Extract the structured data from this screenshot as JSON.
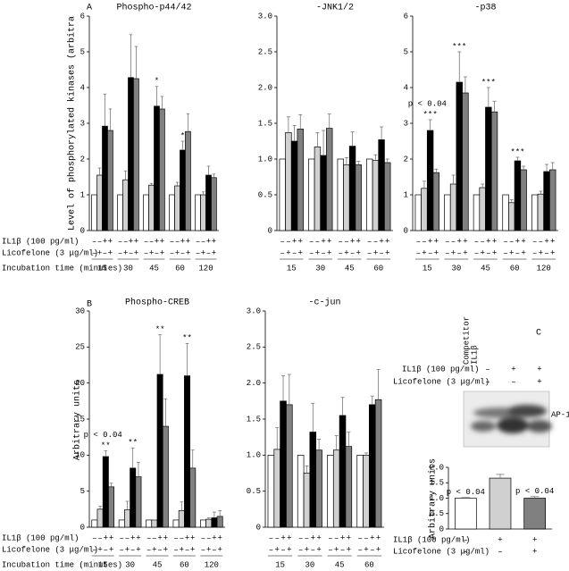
{
  "chart_data": [
    {
      "type": "bar",
      "panel": "A",
      "title": "Phospho-p44/42",
      "ylabel": "Level of phosphorylated kinases (arbitra",
      "il1b_label": "IL1β (100 pg/ml)",
      "licofelone_label": "Licofelone (3 μg/ml)",
      "xlabel": "Incubation time (minutes)",
      "categories": [
        "15",
        "30",
        "45",
        "60",
        "120"
      ],
      "il1b_signs": [
        "–",
        "–",
        "+",
        "+"
      ],
      "licofelone_signs": [
        "–",
        "+",
        "–",
        "+"
      ],
      "series": [
        {
          "color": "#ffffff",
          "values": [
            1,
            1,
            1,
            1,
            1
          ]
        },
        {
          "color": "#d0d0d0",
          "values": [
            1.55,
            1.42,
            1.27,
            1.25,
            1
          ],
          "errors": [
            0.2,
            0.25,
            0.05,
            0.1,
            0.08
          ]
        },
        {
          "color": "#000000",
          "values": [
            2.92,
            4.28,
            3.48,
            2.25,
            1.55
          ],
          "errors": [
            0.9,
            1.2,
            0.55,
            0.25,
            0.25
          ],
          "stars": [
            null,
            null,
            "*",
            "*",
            null
          ]
        },
        {
          "color": "#808080",
          "values": [
            2.8,
            4.25,
            3.4,
            2.77,
            1.48
          ],
          "errors": [
            0.6,
            0.9,
            0.35,
            0.5,
            0.1
          ]
        }
      ],
      "ylim": [
        0,
        6
      ],
      "yticks": [
        0,
        1,
        2,
        3,
        4,
        5,
        6
      ]
    },
    {
      "type": "bar",
      "title": "-JNK1/2",
      "categories": [
        "15",
        "30",
        "45",
        "60"
      ],
      "il1b_signs": [
        "–",
        "–",
        "+",
        "+"
      ],
      "licofelone_signs": [
        "–",
        "+",
        "–",
        "+"
      ],
      "series": [
        {
          "color": "#ffffff",
          "values": [
            1,
            1,
            1,
            1
          ]
        },
        {
          "color": "#d0d0d0",
          "values": [
            1.37,
            1.17,
            0.92,
            0.98
          ],
          "errors": [
            0.22,
            0.2,
            0.1,
            0.08
          ]
        },
        {
          "color": "#000000",
          "values": [
            1.25,
            1.05,
            1.18,
            1.27
          ],
          "errors": [
            0.22,
            0.35,
            0.2,
            0.18
          ]
        },
        {
          "color": "#808080",
          "values": [
            1.42,
            1.43,
            0.92,
            0.95
          ],
          "errors": [
            0.2,
            0.2,
            0.05,
            0.05
          ]
        }
      ],
      "ylim": [
        0,
        3
      ],
      "yticks": [
        0,
        0.5,
        {
          "value": 1,
          "label": "1.0"
        },
        1.5,
        {
          "value": 2,
          "label": "2.0"
        },
        2.5,
        {
          "value": 3,
          "label": "3.0"
        }
      ]
    },
    {
      "type": "bar",
      "title": "-p38",
      "categories": [
        "15",
        "30",
        "45",
        "60",
        "120"
      ],
      "il1b_signs": [
        "–",
        "–",
        "+",
        "+"
      ],
      "licofelone_signs": [
        "–",
        "+",
        "–",
        "+"
      ],
      "p_label": [
        "p < 0.04",
        null,
        null,
        null,
        null
      ],
      "series": [
        {
          "color": "#ffffff",
          "values": [
            1,
            1,
            1,
            1,
            1
          ]
        },
        {
          "color": "#d0d0d0",
          "values": [
            1.18,
            1.3,
            1.2,
            0.78,
            1.02
          ],
          "errors": [
            0.2,
            0.25,
            0.1,
            0.08,
            0.08
          ]
        },
        {
          "color": "#000000",
          "values": [
            2.8,
            4.15,
            3.45,
            1.95,
            1.65
          ],
          "errors": [
            0.3,
            0.85,
            0.55,
            0.1,
            0.2
          ],
          "stars": [
            "***",
            "***",
            "***",
            "***",
            null
          ]
        },
        {
          "color": "#808080",
          "values": [
            1.62,
            3.85,
            3.32,
            1.7,
            1.7
          ],
          "errors": [
            0.1,
            0.45,
            0.3,
            0.1,
            0.2
          ]
        }
      ],
      "ylim": [
        0,
        6
      ],
      "yticks": [
        0,
        1,
        2,
        3,
        4,
        5,
        6
      ]
    },
    {
      "type": "bar",
      "panel": "B",
      "title": "Phospho-CREB",
      "ylabel": "Arbitrary units",
      "il1b_label": "IL1β (100 pg/ml)",
      "licofelone_label": "Licofelone (3 μg/ml)",
      "xlabel": "Incubation time (minutes)",
      "categories": [
        "15",
        "30",
        "45",
        "60",
        "120"
      ],
      "il1b_signs": [
        "–",
        "–",
        "+",
        "+"
      ],
      "licofelone_signs": [
        "–",
        "+",
        "–",
        "+"
      ],
      "p_label": [
        "p < 0.04",
        null,
        null,
        null,
        null
      ],
      "series": [
        {
          "color": "#ffffff",
          "values": [
            1,
            1,
            1,
            1,
            1
          ]
        },
        {
          "color": "#d0d0d0",
          "values": [
            2.5,
            2.4,
            1,
            2.3,
            1.1
          ],
          "errors": [
            0.4,
            1.2,
            0,
            1.2,
            0.2
          ]
        },
        {
          "color": "#000000",
          "values": [
            9.8,
            8.2,
            21.2,
            21,
            1.3
          ],
          "errors": [
            0.8,
            2.8,
            5.5,
            4.5,
            0.8
          ],
          "stars": [
            "**",
            "**",
            "**",
            "**",
            null
          ]
        },
        {
          "color": "#808080",
          "values": [
            5.6,
            7,
            14,
            8.2,
            1.5
          ],
          "errors": [
            0.5,
            2,
            3.8,
            2.5,
            0.8
          ]
        }
      ],
      "ylim": [
        0,
        30
      ],
      "yticks": [
        0,
        5,
        10,
        15,
        20,
        25,
        30
      ]
    },
    {
      "type": "bar",
      "title": "-c-jun",
      "categories": [
        "15",
        "30",
        "45",
        "60"
      ],
      "il1b_signs": [
        "–",
        "–",
        "+",
        "+"
      ],
      "licofelone_signs": [
        "–",
        "+",
        "–",
        "+"
      ],
      "series": [
        {
          "color": "#ffffff",
          "values": [
            1,
            1,
            1,
            1
          ]
        },
        {
          "color": "#d0d0d0",
          "values": [
            1.08,
            0.75,
            1.07,
            1
          ],
          "errors": [
            0.3,
            0.1,
            0.2,
            0.03
          ]
        },
        {
          "color": "#000000",
          "values": [
            1.75,
            1.32,
            1.55,
            1.7
          ],
          "errors": [
            0.35,
            0.4,
            0.25,
            0.12
          ]
        },
        {
          "color": "#808080",
          "values": [
            1.7,
            1.07,
            1.12,
            1.77
          ],
          "errors": [
            0.42,
            0.15,
            0.2,
            0.42
          ]
        }
      ],
      "ylim": [
        0,
        3
      ],
      "yticks": [
        0,
        0.5,
        {
          "value": 1,
          "label": "1.0"
        },
        1.5,
        {
          "value": 2,
          "label": "2.0"
        },
        2.5,
        {
          "value": 3,
          "label": "3.0"
        }
      ]
    },
    {
      "type": "bar",
      "panel": "C",
      "ylabel": "Arbitrary units",
      "il1b_label": "IL1β (100 pg/ml)",
      "licofelone_label": "Licofelone (3 μg/ml)",
      "lanes": [
        "Competitor",
        "IL1β"
      ],
      "band_label": "AP-1",
      "il1b_signs": [
        "–",
        "+",
        "+"
      ],
      "licofelone_signs": [
        "–",
        "–",
        "+"
      ],
      "values": [
        1,
        1.65,
        1
      ],
      "errors": [
        0.02,
        0.12,
        0.05
      ],
      "colors": [
        "#ffffff",
        "#d0d0d0",
        "#808080"
      ],
      "p_label": [
        "p < 0.04",
        null,
        "p < 0.04"
      ],
      "ylim": [
        0,
        2
      ],
      "yticks": [
        0,
        0.5,
        {
          "value": 1,
          "label": "1.0"
        },
        1.5,
        {
          "value": 2,
          "label": "2.0"
        }
      ]
    }
  ]
}
